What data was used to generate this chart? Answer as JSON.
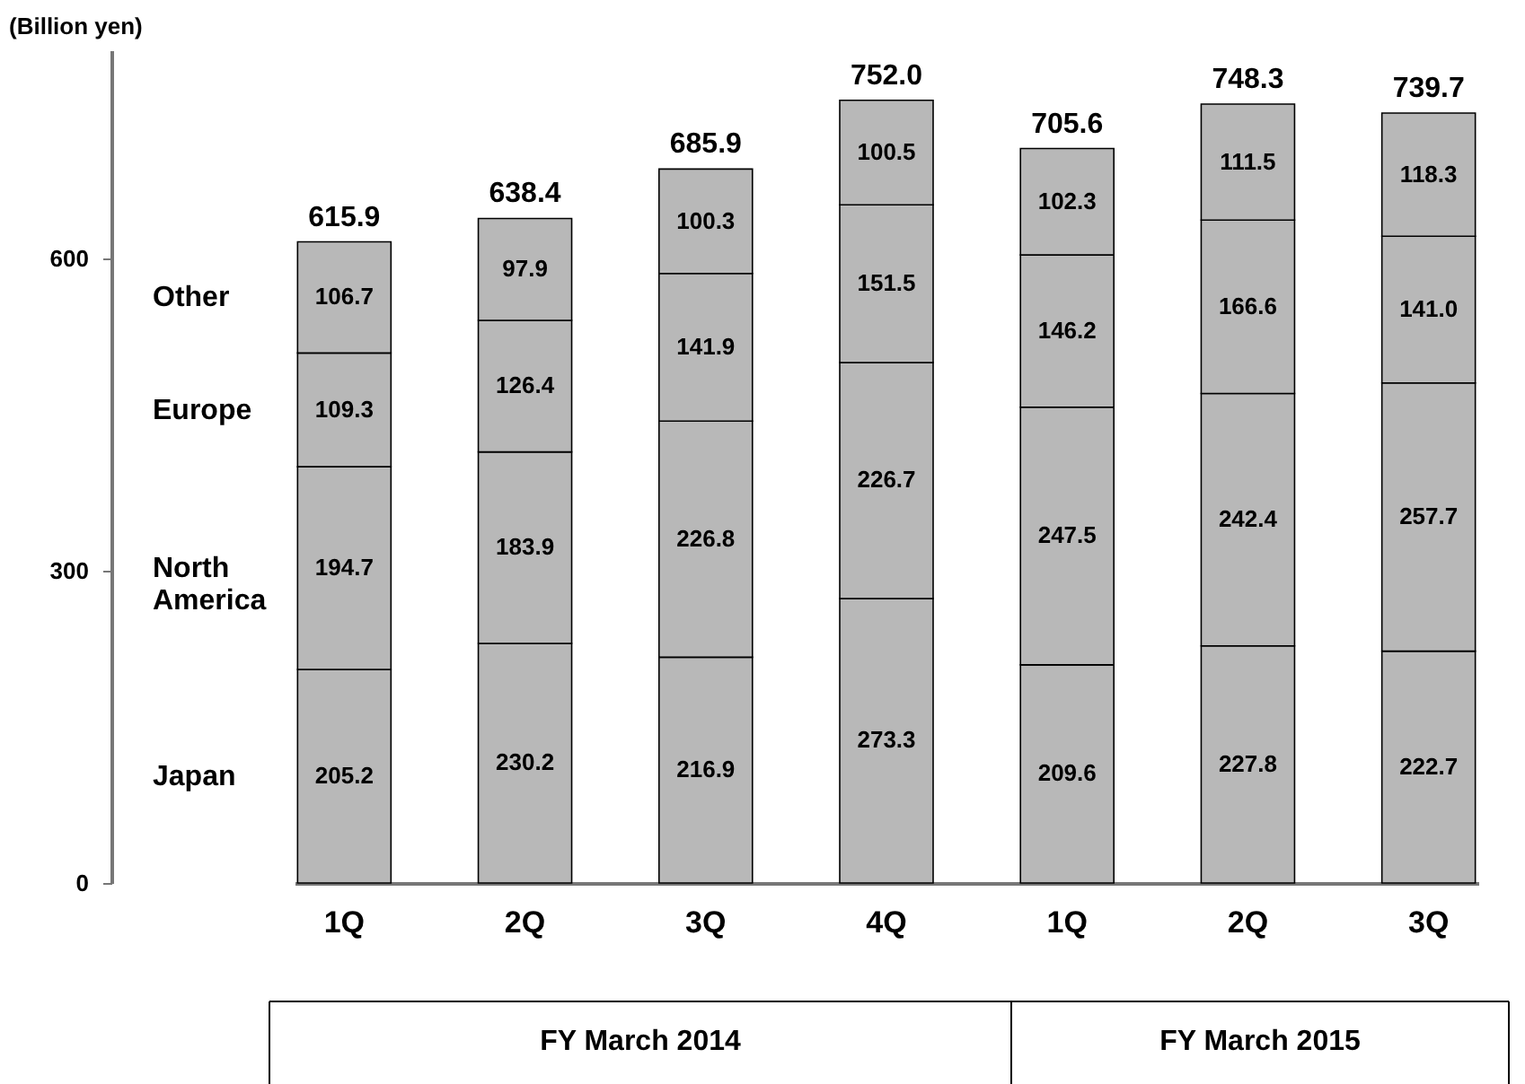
{
  "chart_data": {
    "type": "bar",
    "stacked": true,
    "ylabel": "(Billion yen)",
    "categories": [
      "1Q",
      "2Q",
      "3Q",
      "4Q",
      "1Q",
      "2Q",
      "3Q"
    ],
    "series": [
      {
        "name": "Japan",
        "color": "#b8b8b8",
        "values": [
          205.2,
          230.2,
          216.9,
          273.3,
          209.6,
          227.8,
          222.7
        ]
      },
      {
        "name": "North America",
        "color": "#b8b8b8",
        "values": [
          194.7,
          183.9,
          226.8,
          226.7,
          247.5,
          242.4,
          257.7
        ]
      },
      {
        "name": "Europe",
        "color": "#b8b8b8",
        "values": [
          109.3,
          126.4,
          141.9,
          151.5,
          146.2,
          166.6,
          141.0
        ],
        "value_labels": [
          "109.3",
          "126.4",
          "141.9",
          "151.5",
          "146.2",
          "166.6",
          "141.0"
        ]
      },
      {
        "name": "Other",
        "color": "#b8b8b8",
        "values": [
          106.7,
          97.9,
          100.3,
          100.5,
          102.3,
          111.5,
          118.3
        ]
      }
    ],
    "totals": [
      "615.9",
      "638.4",
      "685.9",
      "752.0",
      "705.6",
      "748.3",
      "739.7"
    ],
    "data_labels": true,
    "ylim": [
      0,
      800
    ],
    "yticks": [
      0,
      300,
      600
    ],
    "grid": false,
    "annotations": [
      "FY March 2014",
      "FY March 2015"
    ]
  }
}
